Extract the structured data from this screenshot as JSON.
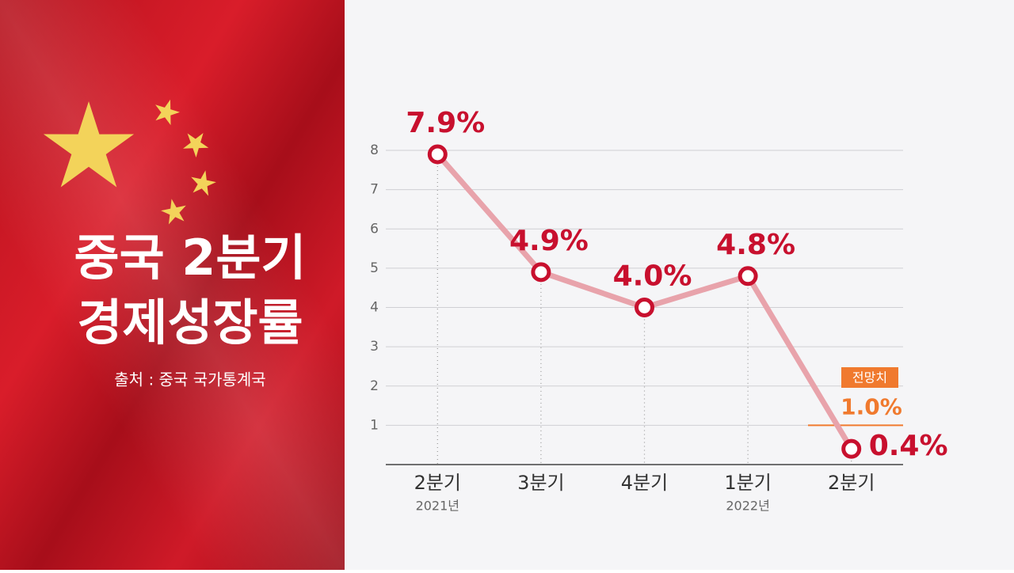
{
  "title_lines": [
    "중국 2분기",
    "경제성장률"
  ],
  "source": "출처 : 중국 국가통계국",
  "chart_data": {
    "type": "line",
    "categories": [
      "2분기",
      "3분기",
      "4분기",
      "1분기",
      "2분기"
    ],
    "category_sublabels": [
      "2021년",
      null,
      null,
      "2022년",
      null
    ],
    "values": [
      7.9,
      4.9,
      4.0,
      4.8,
      0.4
    ],
    "value_labels": [
      "7.9%",
      "4.9%",
      "4.0%",
      "4.8%",
      "0.4%"
    ],
    "color": "#e8a3ab",
    "marker_color": "#c8102e",
    "ylim": [
      0,
      8
    ],
    "yticks": [
      1,
      2,
      3,
      4,
      5,
      6,
      7,
      8
    ],
    "grid": true,
    "forecast": {
      "label": "전망치",
      "value": 1.0,
      "value_label": "1.0%",
      "color": "#f07a2e"
    }
  }
}
